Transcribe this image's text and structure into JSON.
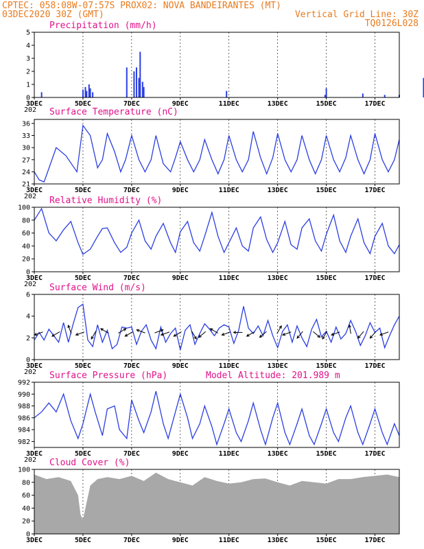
{
  "header": {
    "line1_left": "CPTEC:  058:08W-07:57S  PROX02: NOVA BANDEIRANTES (MT)",
    "line2_left": "03DEC2020 30Z (GMT)",
    "line2_right": "Vertical Grid Line: 30Z",
    "line3_right": "TQ0126L028"
  },
  "x_axis": {
    "tick_labels": [
      "3DEC",
      "5DEC",
      "7DEC",
      "9DEC",
      "11DEC",
      "13DEC",
      "15DEC",
      "17DEC"
    ],
    "under_label": "202"
  },
  "colors": {
    "header": "#e87b1e",
    "panel_title": "#e0118a",
    "series": "#2a3ee0",
    "cloud": "#a8a8a8"
  },
  "chart_data": [
    {
      "type": "bar",
      "title": "Precipitation (mm/h)",
      "ylim": [
        0,
        5
      ],
      "yticks": [
        0,
        1,
        2,
        3,
        4,
        5
      ],
      "x_days": [
        0.3,
        2.0,
        2.1,
        2.15,
        2.25,
        2.3,
        2.4,
        3.8,
        4.1,
        4.2,
        4.3,
        4.35,
        4.45,
        4.5,
        7.9,
        11.95,
        12.0,
        13.5,
        14.4,
        15.0,
        16.0
      ],
      "values": [
        0.4,
        0.6,
        0.8,
        0.5,
        1.0,
        0.7,
        0.4,
        2.3,
        2.0,
        2.3,
        1.5,
        3.5,
        1.2,
        0.8,
        0.5,
        0.2,
        0.7,
        0.3,
        0.2,
        0.2,
        1.5
      ]
    },
    {
      "type": "line",
      "title": "Surface Temperature (nC)",
      "ylim": [
        21,
        37
      ],
      "yticks": [
        21,
        24,
        27,
        30,
        33,
        36
      ],
      "x_days": [
        0,
        0.2,
        0.4,
        0.55,
        0.9,
        1.3,
        1.75,
        2.0,
        2.3,
        2.6,
        2.8,
        3.0,
        3.3,
        3.55,
        3.75,
        4.0,
        4.3,
        4.55,
        4.8,
        5.0,
        5.3,
        5.6,
        5.8,
        6.0,
        6.3,
        6.55,
        6.8,
        7.0,
        7.3,
        7.55,
        7.8,
        8.0,
        8.3,
        8.55,
        8.8,
        9.0,
        9.3,
        9.55,
        9.8,
        10.0,
        10.3,
        10.55,
        10.8,
        11.0,
        11.3,
        11.55,
        11.8,
        12.0,
        12.3,
        12.55,
        12.8,
        13.0,
        13.3,
        13.55,
        13.8,
        14.0,
        14.3,
        14.55,
        14.8,
        15.0
      ],
      "values": [
        24,
        22,
        21.5,
        24,
        30,
        28,
        24,
        35.5,
        33,
        25,
        27,
        33.5,
        29,
        24,
        27,
        33,
        27,
        24,
        27,
        33,
        26,
        24,
        27.5,
        31.5,
        27,
        24,
        27,
        32,
        27,
        23.5,
        27,
        33,
        27,
        24,
        27,
        34,
        27.5,
        23.5,
        27.5,
        33.5,
        27,
        24,
        27,
        33,
        27,
        23.5,
        27,
        33,
        27,
        24,
        27.5,
        33,
        27,
        23.5,
        27,
        33.5,
        27,
        24,
        27,
        32
      ]
    },
    {
      "type": "line",
      "title": "Relative Humidity (%)",
      "ylim": [
        0,
        100
      ],
      "yticks": [
        0,
        20,
        40,
        60,
        80,
        100
      ],
      "x_days": [
        0,
        0.3,
        0.6,
        0.9,
        1.2,
        1.5,
        1.8,
        2.0,
        2.3,
        2.6,
        2.8,
        3.0,
        3.3,
        3.55,
        3.8,
        4.0,
        4.3,
        4.55,
        4.8,
        5.0,
        5.3,
        5.6,
        5.8,
        6.0,
        6.3,
        6.55,
        6.8,
        7.0,
        7.3,
        7.55,
        7.8,
        8.0,
        8.3,
        8.55,
        8.8,
        9.0,
        9.3,
        9.55,
        9.8,
        10.0,
        10.3,
        10.55,
        10.8,
        11.0,
        11.3,
        11.55,
        11.8,
        12.0,
        12.3,
        12.55,
        12.8,
        13.0,
        13.3,
        13.55,
        13.8,
        14.0,
        14.3,
        14.55,
        14.8,
        15.0
      ],
      "values": [
        80,
        98,
        60,
        48,
        65,
        78,
        45,
        27,
        35,
        55,
        67,
        68,
        45,
        30,
        38,
        60,
        80,
        48,
        35,
        55,
        75,
        45,
        30,
        62,
        78,
        45,
        32,
        55,
        92,
        55,
        30,
        45,
        68,
        40,
        32,
        68,
        85,
        50,
        30,
        45,
        78,
        42,
        35,
        68,
        82,
        48,
        32,
        58,
        88,
        48,
        30,
        55,
        82,
        45,
        28,
        55,
        75,
        40,
        28,
        42
      ]
    },
    {
      "type": "line",
      "title": "Surface Wind (m/s)",
      "ylim": [
        0,
        6
      ],
      "yticks": [
        0,
        2,
        4,
        6
      ],
      "x_days": [
        0,
        0.2,
        0.4,
        0.6,
        0.8,
        1.0,
        1.2,
        1.4,
        1.6,
        1.8,
        2.0,
        2.2,
        2.4,
        2.6,
        2.8,
        3.0,
        3.2,
        3.4,
        3.6,
        3.8,
        4.0,
        4.2,
        4.4,
        4.6,
        4.8,
        5.0,
        5.2,
        5.4,
        5.6,
        5.8,
        6.0,
        6.2,
        6.4,
        6.6,
        6.8,
        7.0,
        7.2,
        7.4,
        7.6,
        7.8,
        8.0,
        8.2,
        8.4,
        8.6,
        8.8,
        9.0,
        9.2,
        9.4,
        9.6,
        9.8,
        10.0,
        10.2,
        10.4,
        10.6,
        10.8,
        11.0,
        11.2,
        11.4,
        11.6,
        11.8,
        12.0,
        12.2,
        12.4,
        12.6,
        12.8,
        13.0,
        13.2,
        13.4,
        13.6,
        13.8,
        14.0,
        14.2,
        14.4,
        14.6,
        14.8,
        15.0
      ],
      "values": [
        1.8,
        2.5,
        1.8,
        2.8,
        2.2,
        1.6,
        3.4,
        1.6,
        3.3,
        4.8,
        5.1,
        1.8,
        1.2,
        3.2,
        1.6,
        2.7,
        1.0,
        1.4,
        3.0,
        2.9,
        3.0,
        1.4,
        2.6,
        3.2,
        1.8,
        1.0,
        3.0,
        1.6,
        2.4,
        2.9,
        0.9,
        2.7,
        3.2,
        1.4,
        2.4,
        3.3,
        2.8,
        2.2,
        2.9,
        3.2,
        3.0,
        1.5,
        2.7,
        4.9,
        2.9,
        2.4,
        3.1,
        2.2,
        3.6,
        2.2,
        1.1,
        2.6,
        3.2,
        1.6,
        3.1,
        2.0,
        1.2,
        2.8,
        3.7,
        2.1,
        2.6,
        1.6,
        3.0,
        1.9,
        2.4,
        3.6,
        2.6,
        1.3,
        2.2,
        3.4,
        2.5,
        2.9,
        1.1,
        2.2,
        3.2,
        4.0
      ]
    },
    {
      "type": "line",
      "title": "Surface Pressure (hPa)",
      "subtitle": "Model Altitude: 201.989 m",
      "ylim": [
        981,
        992
      ],
      "yticks": [
        982,
        984,
        986,
        988,
        990,
        992
      ],
      "x_days": [
        0,
        0.3,
        0.6,
        0.9,
        1.2,
        1.5,
        1.8,
        2.0,
        2.3,
        2.5,
        2.8,
        3.0,
        3.3,
        3.5,
        3.8,
        4.0,
        4.3,
        4.5,
        4.8,
        5.0,
        5.3,
        5.5,
        5.8,
        6.0,
        6.3,
        6.5,
        6.8,
        7.0,
        7.3,
        7.5,
        7.8,
        8.0,
        8.3,
        8.5,
        8.8,
        9.0,
        9.3,
        9.5,
        9.8,
        10.0,
        10.3,
        10.5,
        10.8,
        11.0,
        11.3,
        11.5,
        11.8,
        12.0,
        12.3,
        12.5,
        12.8,
        13.0,
        13.3,
        13.5,
        13.8,
        14.0,
        14.3,
        14.5,
        14.8,
        15.0
      ],
      "values": [
        986,
        987,
        988.5,
        987,
        990,
        985.5,
        982.5,
        985,
        990,
        987,
        983,
        987.5,
        988,
        984,
        982.5,
        989,
        985.5,
        983.5,
        987,
        990.5,
        985,
        982.5,
        987,
        990,
        986,
        982.5,
        985,
        988,
        984.5,
        981.5,
        985,
        987.5,
        983.5,
        982,
        985.5,
        988.5,
        984,
        981.5,
        986,
        988.5,
        983.5,
        981.5,
        985,
        987.5,
        983,
        981.5,
        985,
        987.5,
        983.5,
        982,
        986,
        988,
        983.5,
        981.5,
        985,
        987.5,
        983.5,
        981.5,
        985,
        983
      ]
    },
    {
      "type": "area",
      "title": "Cloud Cover (%)",
      "ylim": [
        0,
        100
      ],
      "yticks": [
        0,
        20,
        40,
        60,
        80,
        100
      ],
      "x_days": [
        0,
        0.5,
        1.0,
        1.5,
        1.8,
        1.9,
        2.0,
        2.1,
        2.3,
        2.6,
        3.0,
        3.5,
        4.0,
        4.5,
        5.0,
        5.5,
        6.0,
        6.5,
        7.0,
        7.5,
        8.0,
        8.5,
        9.0,
        9.5,
        10.0,
        10.5,
        11.0,
        11.5,
        12.0,
        12.5,
        13.0,
        13.5,
        14.0,
        14.5,
        15.0
      ],
      "values": [
        92,
        85,
        88,
        82,
        60,
        30,
        22,
        40,
        75,
        85,
        88,
        85,
        90,
        82,
        95,
        85,
        80,
        75,
        88,
        82,
        78,
        80,
        85,
        86,
        80,
        75,
        82,
        80,
        78,
        85,
        85,
        88,
        90,
        92,
        88
      ]
    }
  ],
  "wind_arrows": {
    "x_days": [
      0.3,
      1.0,
      1.5,
      2.0,
      2.5,
      3.0,
      3.5,
      4.0,
      4.5,
      5.0,
      5.5,
      6.0,
      6.5,
      7.0,
      7.5,
      8.0,
      8.5,
      9.0,
      9.5,
      10.0,
      10.5,
      11.0,
      11.5,
      12.0,
      12.5,
      13.0,
      13.5,
      14.0,
      14.5
    ],
    "angles_deg": [
      200,
      210,
      110,
      200,
      240,
      150,
      30,
      210,
      160,
      20,
      200,
      210,
      300,
      220,
      150,
      200,
      180,
      210,
      220,
      60,
      200,
      230,
      320,
      240,
      200,
      100,
      230,
      230,
      200
    ]
  }
}
